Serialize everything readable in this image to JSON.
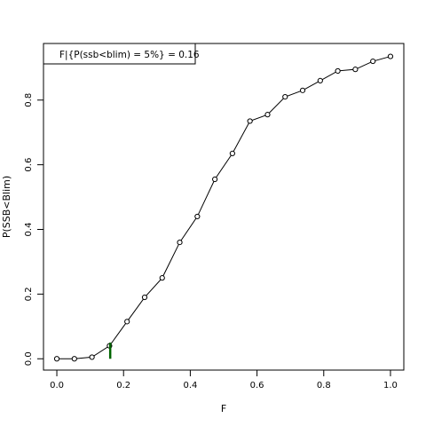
{
  "chart_data": {
    "type": "line",
    "xlabel": "F",
    "ylabel": "P(SSB<Blim)",
    "xlim": [
      -0.04,
      1.04
    ],
    "ylim": [
      -0.035,
      0.975
    ],
    "x_ticks": [
      0.0,
      0.2,
      0.4,
      0.6,
      0.8,
      1.0
    ],
    "x_tick_labels": [
      "0.0",
      "0.2",
      "0.4",
      "0.6",
      "0.8",
      "1.0"
    ],
    "y_ticks": [
      0.0,
      0.2,
      0.4,
      0.6,
      0.8
    ],
    "y_tick_labels": [
      "0.0",
      "0.2",
      "0.4",
      "0.6",
      "0.8"
    ],
    "series": [
      {
        "x": [
          0.0,
          0.0526,
          0.1053,
          0.1579,
          0.2105,
          0.2632,
          0.3158,
          0.3684,
          0.4211,
          0.4737,
          0.5263,
          0.5789,
          0.6316,
          0.6842,
          0.7368,
          0.7895,
          0.8421,
          0.8947,
          0.9474,
          1.0
        ],
        "y": [
          0.0,
          0.0,
          0.005,
          0.04,
          0.115,
          0.19,
          0.25,
          0.36,
          0.44,
          0.555,
          0.635,
          0.735,
          0.755,
          0.81,
          0.83,
          0.86,
          0.89,
          0.895,
          0.92,
          0.935
        ]
      }
    ],
    "marker": "open-circle",
    "line_color": "#000000",
    "reference_line": {
      "x": 0.16,
      "y_from": 0.0,
      "y_to": 0.05,
      "color": "#006400"
    },
    "legend": {
      "text": "F|{P(ssb<blim) = 5%} =  0.16",
      "position": "top-left"
    },
    "grid": false
  }
}
